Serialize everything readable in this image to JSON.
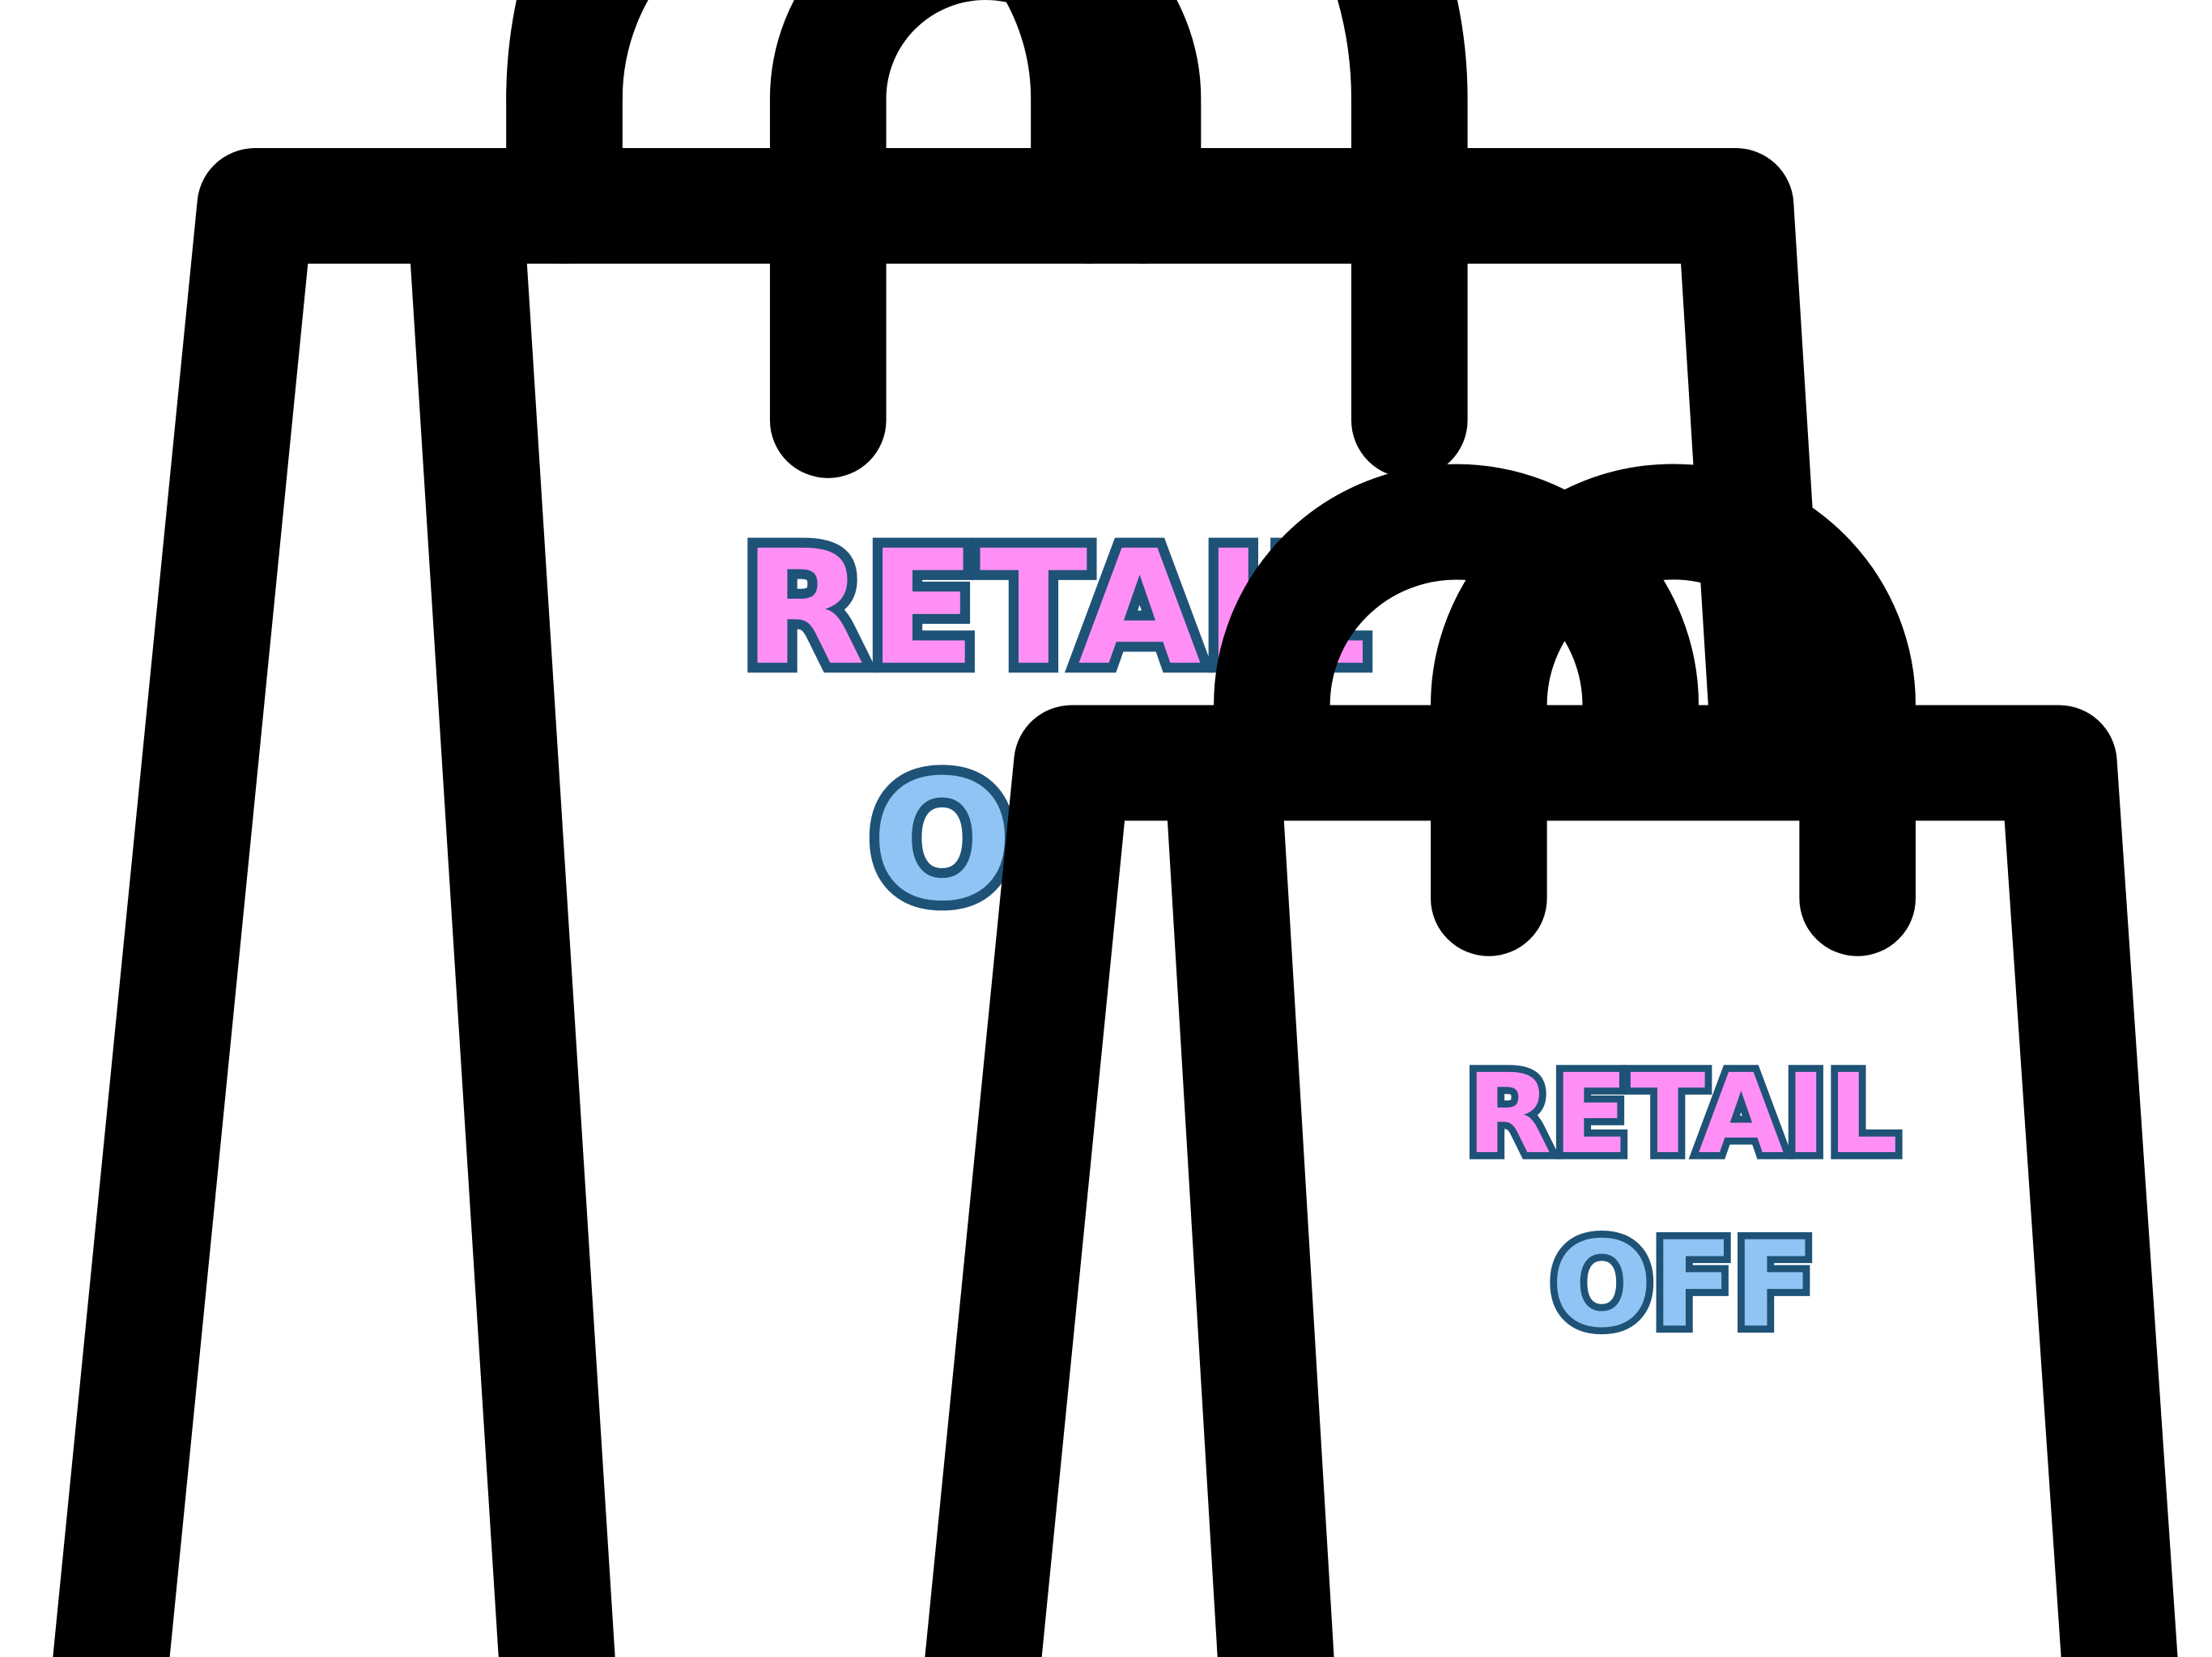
{
  "bags": {
    "large": {
      "line1": "RETAIL",
      "line2": "OFF"
    },
    "small": {
      "line1": "RETAIL",
      "line2": "OFF"
    }
  },
  "colors": {
    "bag_outline": "#000000",
    "background": "#ffffff",
    "retail_fill": "#ff8ff5",
    "off_fill": "#90c4f4",
    "text_outline": "#1f5277"
  },
  "icons": [
    "shopping-bag-icon",
    "shopping-bag-icon"
  ]
}
